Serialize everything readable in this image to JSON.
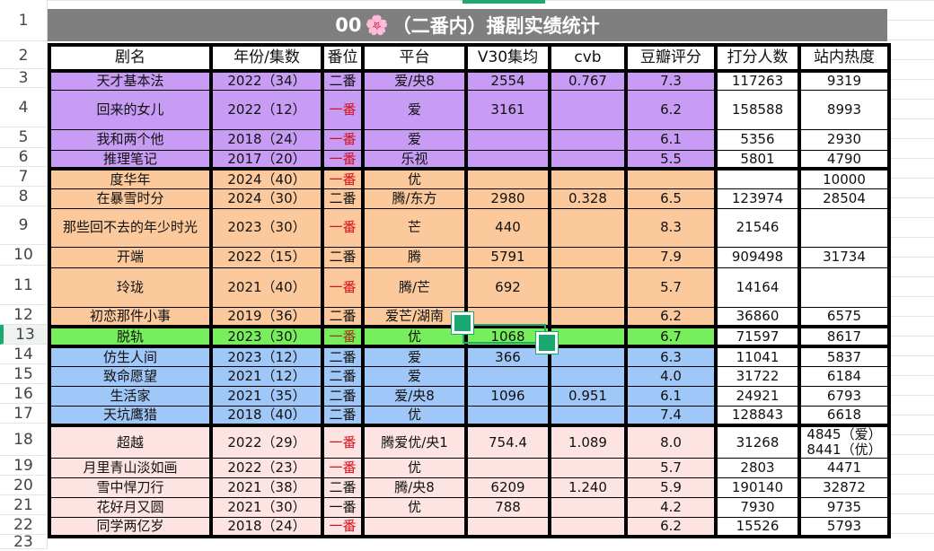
{
  "title": {
    "prefix": "00",
    "emoji": "🌸",
    "text": "（二番内）播剧实绩统计"
  },
  "row_numbers": [
    "1",
    "2",
    "3",
    "4",
    "5",
    "6",
    "7",
    "8",
    "9",
    "10",
    "11",
    "12",
    "13",
    "14",
    "15",
    "16",
    "17",
    "18",
    "19",
    "20",
    "21",
    "22",
    "23"
  ],
  "active_row": "13",
  "colors": {
    "purple": "#c89cf5",
    "orange": "#fcc99c",
    "green": "#77ef5c",
    "blue": "#9fc7f7",
    "pink": "#fde4e3",
    "title_bg": "#7f7f7f",
    "rank_red": "#d4101c",
    "rank_dark_red": "#a0301a",
    "selection": "#1fa971"
  },
  "headers": [
    "剧名",
    "年份/集数",
    "番位",
    "平台",
    "V30集均",
    "cvb",
    "豆瓣评分",
    "打分人数",
    "站内热度"
  ],
  "rows": [
    {
      "group": "purple",
      "rank_color": "#111",
      "cells": [
        "天才基本法",
        "2022（34）",
        "二番",
        "爱/央8",
        "2554",
        "0.767",
        "7.3",
        "117263",
        "9319"
      ]
    },
    {
      "group": "purple",
      "rank_color": "#d4101c",
      "cells": [
        "回来的女儿",
        "2022（12）",
        "一番",
        "爱",
        "3161",
        "",
        "6.2",
        "158588",
        "8993"
      ]
    },
    {
      "group": "purple",
      "rank_color": "#d4101c",
      "cells": [
        "我和两个他",
        "2018（24）",
        "一番",
        "爱",
        "",
        "",
        "6.1",
        "5356",
        "2930"
      ]
    },
    {
      "group": "purple",
      "rank_color": "#d4101c",
      "cells": [
        "推理笔记",
        "2017（20）",
        "一番",
        "乐视",
        "",
        "",
        "5.5",
        "5801",
        "4790"
      ]
    },
    {
      "group": "orange",
      "rank_color": "#d4101c",
      "cells": [
        "度华年",
        "2024（40）",
        "一番",
        "优",
        "",
        "",
        "",
        "",
        "10000"
      ]
    },
    {
      "group": "orange",
      "rank_color": "#111",
      "cells": [
        "在暴雪时分",
        "2024（30）",
        "二番",
        "腾/东方",
        "2980",
        "0.328",
        "6.5",
        "123974",
        "28504"
      ]
    },
    {
      "group": "orange",
      "rank_color": "#d4101c",
      "cells": [
        "那些回不去的年少时光",
        "2023（30）",
        "一番",
        "芒",
        "440",
        "",
        "8.3",
        "21546",
        ""
      ]
    },
    {
      "group": "orange",
      "rank_color": "#111",
      "cells": [
        "开端",
        "2022（15）",
        "二番",
        "腾",
        "5791",
        "",
        "7.9",
        "909498",
        "31734"
      ]
    },
    {
      "group": "orange",
      "rank_color": "#d4101c",
      "cells": [
        "玲珑",
        "2021（40）",
        "一番",
        "腾/芒",
        "692",
        "",
        "5.7",
        "14164",
        ""
      ]
    },
    {
      "group": "orange",
      "rank_color": "#111",
      "cells": [
        "初恋那件小事",
        "2019（36）",
        "二番",
        "爱芒/湖南",
        "",
        "",
        "6.2",
        "36860",
        "6575"
      ]
    },
    {
      "group": "green",
      "rank_color": "#a0301a",
      "cells": [
        "脱轨",
        "2023（30）",
        "一番",
        "优",
        "1068",
        "",
        "6.7",
        "71597",
        "8617"
      ]
    },
    {
      "group": "blue",
      "rank_color": "#111",
      "cells": [
        "仿生人间",
        "2023（12）",
        "二番",
        "爱",
        "366",
        "",
        "6.3",
        "11041",
        "5837"
      ]
    },
    {
      "group": "blue",
      "rank_color": "#111",
      "cells": [
        "致命愿望",
        "2021（12）",
        "二番",
        "爱",
        "",
        "",
        "4.0",
        "31722",
        "6184"
      ]
    },
    {
      "group": "blue",
      "rank_color": "#111",
      "cells": [
        "生活家",
        "2021（35）",
        "二番",
        "爱/央8",
        "1096",
        "0.951",
        "6.1",
        "24921",
        "6793"
      ]
    },
    {
      "group": "blue",
      "rank_color": "#111",
      "cells": [
        "天坑鹰猎",
        "2018（40）",
        "二番",
        "优",
        "",
        "",
        "7.4",
        "128843",
        "6618"
      ]
    },
    {
      "group": "pink",
      "rank_color": "#d4101c",
      "cells": [
        "超越",
        "2022（29）",
        "一番",
        "腾爱优/央1",
        "754.4",
        "1.089",
        "8.0",
        "31268",
        "4845（爱）8441（优）"
      ]
    },
    {
      "group": "pink",
      "rank_color": "#d4101c",
      "cells": [
        "月里青山淡如画",
        "2022（23）",
        "一番",
        "优",
        "",
        "",
        "5.7",
        "2803",
        "4471"
      ]
    },
    {
      "group": "pink",
      "rank_color": "#111",
      "cells": [
        "雪中悍刀行",
        "2021（38）",
        "二番",
        "腾/央8",
        "6209",
        "1.240",
        "5.9",
        "190140",
        "32872"
      ]
    },
    {
      "group": "pink",
      "rank_color": "#111",
      "cells": [
        "花好月又圆",
        "2021（30）",
        "一番",
        "优",
        "788",
        "",
        "4.2",
        "7930",
        "9735"
      ]
    },
    {
      "group": "pink",
      "rank_color": "#d4101c",
      "cells": [
        "同学两亿岁",
        "2018（24）",
        "一番",
        "",
        "",
        "",
        "6.2",
        "15526",
        "5793"
      ]
    }
  ]
}
